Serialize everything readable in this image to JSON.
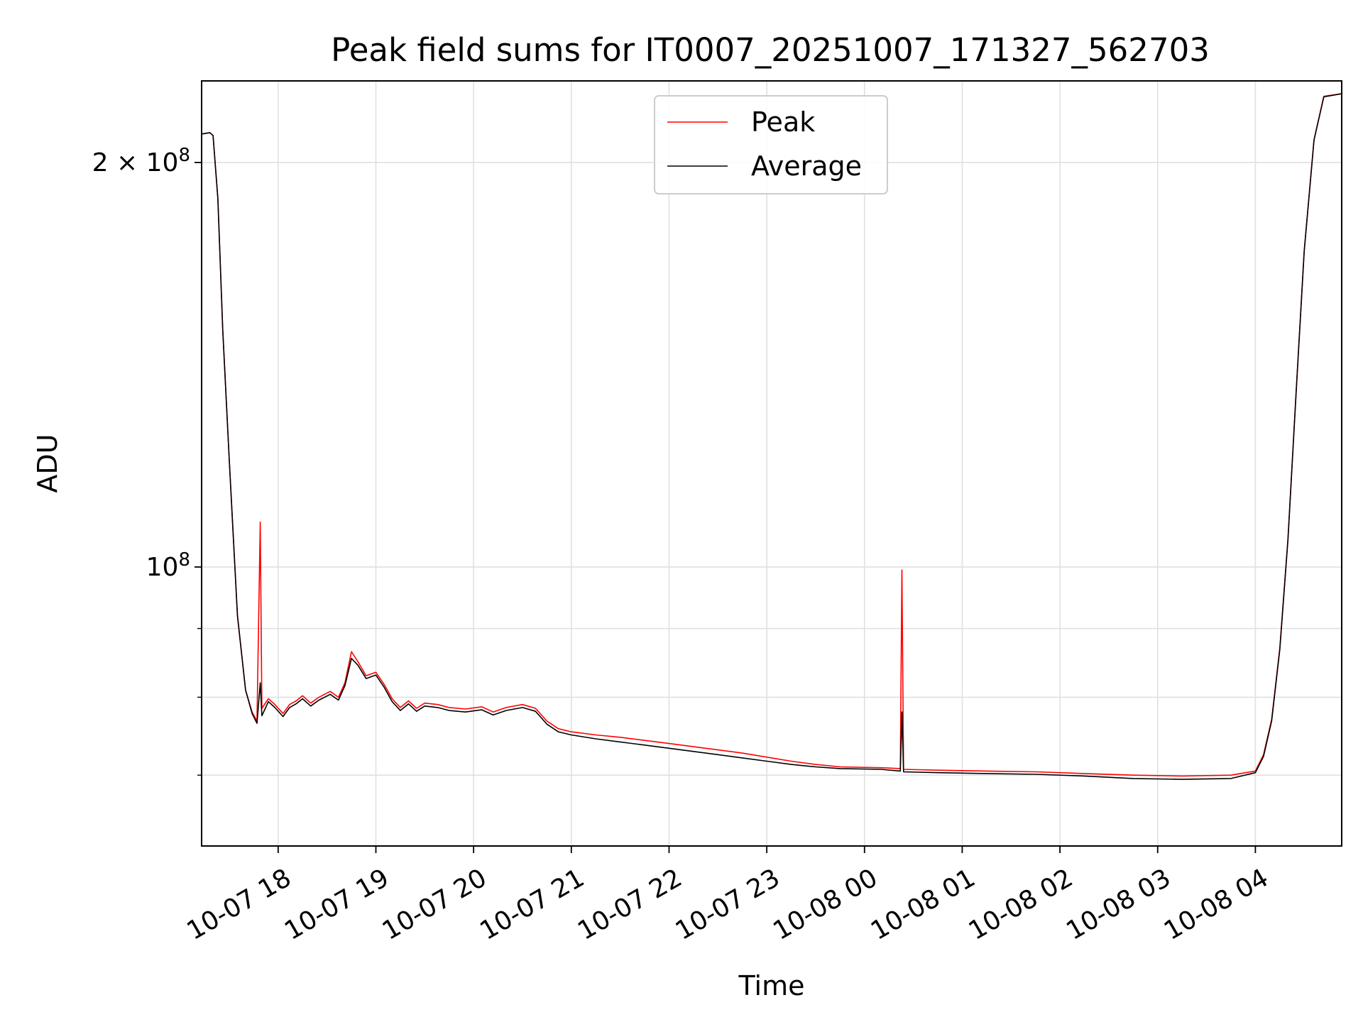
{
  "chart_data": {
    "type": "line",
    "title": "Peak field sums for IT0007_20251007_171327_562703",
    "xlabel": "Time",
    "ylabel": "ADU",
    "yscale": "log",
    "grid": true,
    "legend_position": "top-center",
    "xlim": [
      "2025-10-07 17:13",
      "2025-10-08 04:53"
    ],
    "ylim": [
      62000000,
      230000000
    ],
    "x_ticks": [
      {
        "t": "2025-10-07 18:00",
        "label": "10-07 18"
      },
      {
        "t": "2025-10-07 19:00",
        "label": "10-07 19"
      },
      {
        "t": "2025-10-07 20:00",
        "label": "10-07 20"
      },
      {
        "t": "2025-10-07 21:00",
        "label": "10-07 21"
      },
      {
        "t": "2025-10-07 22:00",
        "label": "10-07 22"
      },
      {
        "t": "2025-10-07 23:00",
        "label": "10-07 23"
      },
      {
        "t": "2025-10-08 00:00",
        "label": "10-08 00"
      },
      {
        "t": "2025-10-08 01:00",
        "label": "10-08 01"
      },
      {
        "t": "2025-10-08 02:00",
        "label": "10-08 02"
      },
      {
        "t": "2025-10-08 03:00",
        "label": "10-08 03"
      },
      {
        "t": "2025-10-08 04:00",
        "label": "10-08 04"
      }
    ],
    "y_ticks": [
      {
        "value": 100000000,
        "base": "10",
        "exp": "8",
        "coef": ""
      },
      {
        "value": 200000000,
        "base": "10",
        "exp": "8",
        "coef": "2 × "
      }
    ],
    "y_minor_ticks": [
      70000000,
      80000000,
      90000000
    ],
    "series": [
      {
        "name": "Peak",
        "color": "#ff0000",
        "points": [
          [
            "2025-10-07 17:13",
            210000000
          ],
          [
            "2025-10-07 17:18",
            210500000
          ],
          [
            "2025-10-07 17:20",
            209500000
          ],
          [
            "2025-10-07 17:23",
            188000000
          ],
          [
            "2025-10-07 17:26",
            150000000
          ],
          [
            "2025-10-07 17:30",
            120000000
          ],
          [
            "2025-10-07 17:35",
            92000000
          ],
          [
            "2025-10-07 17:40",
            81000000
          ],
          [
            "2025-10-07 17:44",
            78000000
          ],
          [
            "2025-10-07 17:47",
            76800000
          ],
          [
            "2025-10-07 17:49",
            108000000
          ],
          [
            "2025-10-07 17:50",
            78500000
          ],
          [
            "2025-10-07 17:54",
            79800000
          ],
          [
            "2025-10-07 17:58",
            79000000
          ],
          [
            "2025-10-07 18:03",
            77800000
          ],
          [
            "2025-10-07 18:07",
            79000000
          ],
          [
            "2025-10-07 18:11",
            79500000
          ],
          [
            "2025-10-07 18:15",
            80200000
          ],
          [
            "2025-10-07 18:20",
            79200000
          ],
          [
            "2025-10-07 18:25",
            80000000
          ],
          [
            "2025-10-07 18:32",
            80800000
          ],
          [
            "2025-10-07 18:37",
            80000000
          ],
          [
            "2025-10-07 18:41",
            82000000
          ],
          [
            "2025-10-07 18:45",
            86500000
          ],
          [
            "2025-10-07 18:49",
            85000000
          ],
          [
            "2025-10-07 18:54",
            83000000
          ],
          [
            "2025-10-07 19:00",
            83500000
          ],
          [
            "2025-10-07 19:05",
            81800000
          ],
          [
            "2025-10-07 19:10",
            79800000
          ],
          [
            "2025-10-07 19:15",
            78600000
          ],
          [
            "2025-10-07 19:20",
            79500000
          ],
          [
            "2025-10-07 19:25",
            78500000
          ],
          [
            "2025-10-07 19:30",
            79200000
          ],
          [
            "2025-10-07 19:38",
            79000000
          ],
          [
            "2025-10-07 19:45",
            78600000
          ],
          [
            "2025-10-07 19:55",
            78400000
          ],
          [
            "2025-10-07 20:05",
            78700000
          ],
          [
            "2025-10-07 20:12",
            78000000
          ],
          [
            "2025-10-07 20:20",
            78600000
          ],
          [
            "2025-10-07 20:30",
            79000000
          ],
          [
            "2025-10-07 20:38",
            78500000
          ],
          [
            "2025-10-07 20:45",
            76800000
          ],
          [
            "2025-10-07 20:52",
            75800000
          ],
          [
            "2025-10-07 21:00",
            75400000
          ],
          [
            "2025-10-07 21:15",
            75000000
          ],
          [
            "2025-10-07 21:30",
            74700000
          ],
          [
            "2025-10-07 21:45",
            74300000
          ],
          [
            "2025-10-07 22:00",
            73900000
          ],
          [
            "2025-10-07 22:15",
            73500000
          ],
          [
            "2025-10-07 22:30",
            73100000
          ],
          [
            "2025-10-07 22:45",
            72700000
          ],
          [
            "2025-10-07 23:00",
            72200000
          ],
          [
            "2025-10-07 23:15",
            71700000
          ],
          [
            "2025-10-07 23:30",
            71300000
          ],
          [
            "2025-10-07 23:45",
            71000000
          ],
          [
            "2025-10-08 00:10",
            70900000
          ],
          [
            "2025-10-08 00:22",
            70800000
          ],
          [
            "2025-10-08 00:23",
            99500000
          ],
          [
            "2025-10-08 00:24",
            70700000
          ],
          [
            "2025-10-08 00:45",
            70600000
          ],
          [
            "2025-10-08 01:15",
            70500000
          ],
          [
            "2025-10-08 01:45",
            70400000
          ],
          [
            "2025-10-08 02:15",
            70200000
          ],
          [
            "2025-10-08 02:45",
            70000000
          ],
          [
            "2025-10-08 03:15",
            69900000
          ],
          [
            "2025-10-08 03:45",
            70000000
          ],
          [
            "2025-10-08 04:00",
            70500000
          ],
          [
            "2025-10-08 04:05",
            72500000
          ],
          [
            "2025-10-08 04:10",
            77000000
          ],
          [
            "2025-10-08 04:15",
            87000000
          ],
          [
            "2025-10-08 04:20",
            105000000
          ],
          [
            "2025-10-08 04:25",
            135000000
          ],
          [
            "2025-10-08 04:30",
            172000000
          ],
          [
            "2025-10-08 04:36",
            208000000
          ],
          [
            "2025-10-08 04:42",
            224000000
          ],
          [
            "2025-10-08 04:53",
            225000000
          ]
        ]
      },
      {
        "name": "Average",
        "color": "#000000",
        "points": [
          [
            "2025-10-07 17:13",
            210000000
          ],
          [
            "2025-10-07 17:18",
            210500000
          ],
          [
            "2025-10-07 17:20",
            209500000
          ],
          [
            "2025-10-07 17:23",
            188000000
          ],
          [
            "2025-10-07 17:26",
            150000000
          ],
          [
            "2025-10-07 17:30",
            120000000
          ],
          [
            "2025-10-07 17:35",
            92000000
          ],
          [
            "2025-10-07 17:40",
            81000000
          ],
          [
            "2025-10-07 17:44",
            77800000
          ],
          [
            "2025-10-07 17:47",
            76500000
          ],
          [
            "2025-10-07 17:49",
            82000000
          ],
          [
            "2025-10-07 17:50",
            77500000
          ],
          [
            "2025-10-07 17:54",
            79400000
          ],
          [
            "2025-10-07 17:58",
            78600000
          ],
          [
            "2025-10-07 18:03",
            77400000
          ],
          [
            "2025-10-07 18:07",
            78600000
          ],
          [
            "2025-10-07 18:11",
            79100000
          ],
          [
            "2025-10-07 18:15",
            79800000
          ],
          [
            "2025-10-07 18:20",
            78800000
          ],
          [
            "2025-10-07 18:25",
            79600000
          ],
          [
            "2025-10-07 18:32",
            80400000
          ],
          [
            "2025-10-07 18:37",
            79600000
          ],
          [
            "2025-10-07 18:41",
            81600000
          ],
          [
            "2025-10-07 18:45",
            85500000
          ],
          [
            "2025-10-07 18:49",
            84500000
          ],
          [
            "2025-10-07 18:54",
            82600000
          ],
          [
            "2025-10-07 19:00",
            83100000
          ],
          [
            "2025-10-07 19:05",
            81400000
          ],
          [
            "2025-10-07 19:10",
            79400000
          ],
          [
            "2025-10-07 19:15",
            78200000
          ],
          [
            "2025-10-07 19:20",
            79100000
          ],
          [
            "2025-10-07 19:25",
            78100000
          ],
          [
            "2025-10-07 19:30",
            78800000
          ],
          [
            "2025-10-07 19:38",
            78600000
          ],
          [
            "2025-10-07 19:45",
            78200000
          ],
          [
            "2025-10-07 19:55",
            78000000
          ],
          [
            "2025-10-07 20:05",
            78300000
          ],
          [
            "2025-10-07 20:12",
            77600000
          ],
          [
            "2025-10-07 20:20",
            78200000
          ],
          [
            "2025-10-07 20:30",
            78600000
          ],
          [
            "2025-10-07 20:38",
            78100000
          ],
          [
            "2025-10-07 20:45",
            76400000
          ],
          [
            "2025-10-07 20:52",
            75400000
          ],
          [
            "2025-10-07 21:00",
            75000000
          ],
          [
            "2025-10-07 21:15",
            74500000
          ],
          [
            "2025-10-07 21:30",
            74100000
          ],
          [
            "2025-10-07 21:45",
            73700000
          ],
          [
            "2025-10-07 22:00",
            73300000
          ],
          [
            "2025-10-07 22:15",
            72900000
          ],
          [
            "2025-10-07 22:30",
            72500000
          ],
          [
            "2025-10-07 22:45",
            72100000
          ],
          [
            "2025-10-07 23:00",
            71700000
          ],
          [
            "2025-10-07 23:15",
            71300000
          ],
          [
            "2025-10-07 23:30",
            71000000
          ],
          [
            "2025-10-07 23:45",
            70800000
          ],
          [
            "2025-10-08 00:10",
            70700000
          ],
          [
            "2025-10-08 00:22",
            70500000
          ],
          [
            "2025-10-08 00:23",
            78000000
          ],
          [
            "2025-10-08 00:24",
            70400000
          ],
          [
            "2025-10-08 00:45",
            70300000
          ],
          [
            "2025-10-08 01:15",
            70200000
          ],
          [
            "2025-10-08 01:45",
            70100000
          ],
          [
            "2025-10-08 02:15",
            69900000
          ],
          [
            "2025-10-08 02:45",
            69600000
          ],
          [
            "2025-10-08 03:15",
            69500000
          ],
          [
            "2025-10-08 03:45",
            69600000
          ],
          [
            "2025-10-08 04:00",
            70300000
          ],
          [
            "2025-10-08 04:05",
            72300000
          ],
          [
            "2025-10-08 04:10",
            76800000
          ],
          [
            "2025-10-08 04:15",
            86800000
          ],
          [
            "2025-10-08 04:20",
            104800000
          ],
          [
            "2025-10-08 04:25",
            134800000
          ],
          [
            "2025-10-08 04:30",
            171800000
          ],
          [
            "2025-10-08 04:36",
            207800000
          ],
          [
            "2025-10-08 04:42",
            223800000
          ],
          [
            "2025-10-08 04:53",
            225000000
          ]
        ]
      }
    ]
  }
}
